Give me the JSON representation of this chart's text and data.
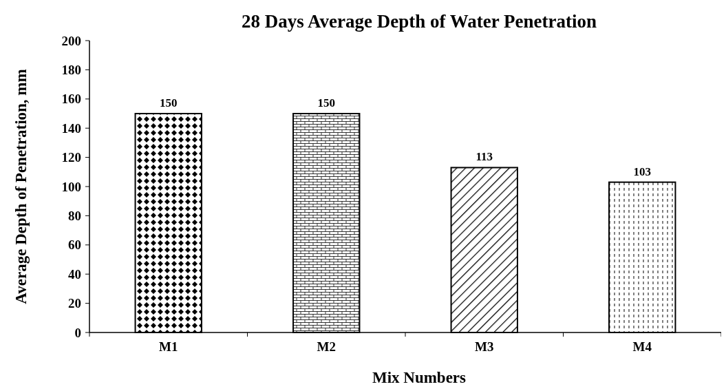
{
  "chart_data": {
    "type": "bar",
    "title": "28 Days Average Depth of Water Penetration",
    "xlabel": "Mix Numbers",
    "ylabel": "Average Depth of Penetration, mm",
    "categories": [
      "M1",
      "M2",
      "M3",
      "M4"
    ],
    "values": [
      150,
      150,
      113,
      103
    ],
    "colors": [
      "#000000",
      "#000000",
      "#000000",
      "#000000"
    ],
    "ylim": [
      0,
      200
    ],
    "yticks": [
      0,
      20,
      40,
      60,
      80,
      100,
      120,
      140,
      160,
      180,
      200
    ],
    "grid": false,
    "data_labels": true
  }
}
